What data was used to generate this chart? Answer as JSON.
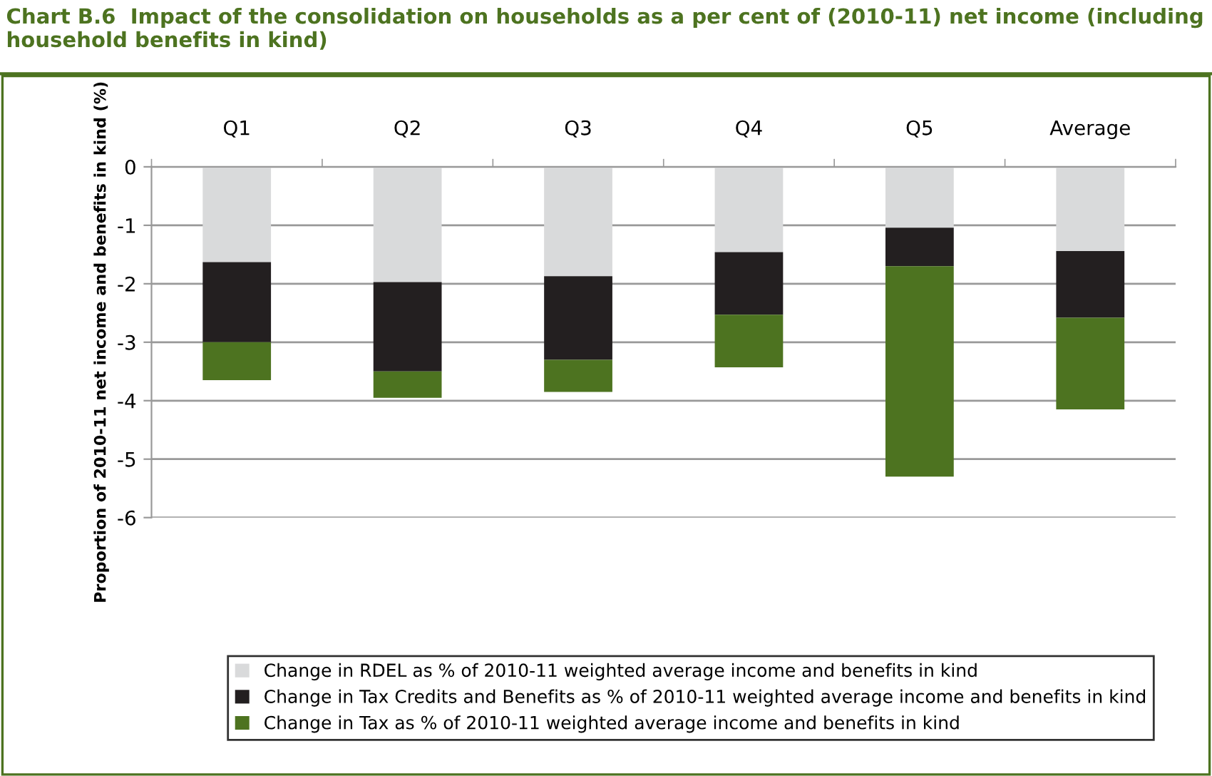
{
  "chart_data": {
    "type": "bar",
    "stacked": true,
    "title": "Chart B.6  Impact of the consolidation on households as a per cent of (2010-11) net income (including household benefits in kind)",
    "ylabel": "Proportion of 2010-11 net income and benefits in kind (%)",
    "categories": [
      "Q1",
      "Q2",
      "Q3",
      "Q4",
      "Q5",
      "Average"
    ],
    "series": [
      {
        "name": "Change in RDEL as % of 2010-11 weighted average income and benefits in kind",
        "color": "#d9dadb",
        "values": [
          -1.63,
          -1.97,
          -1.87,
          -1.46,
          -1.04,
          -1.44
        ]
      },
      {
        "name": "Change in Tax Credits and Benefits as % of 2010-11 weighted average income and benefits in kind",
        "color": "#231f20",
        "values": [
          -1.37,
          -1.53,
          -1.43,
          -1.07,
          -0.66,
          -1.14
        ]
      },
      {
        "name": "Change in Tax as % of 2010-11 weighted average income and benefits in kind",
        "color": "#4d7320",
        "values": [
          -0.65,
          -0.45,
          -0.55,
          -0.9,
          -3.6,
          -1.57
        ]
      }
    ],
    "ylim": [
      -6,
      0
    ],
    "yticks": [
      -6,
      -5,
      -4,
      -3,
      -2,
      -1,
      0
    ],
    "grid": "y",
    "legend": "bottom"
  }
}
